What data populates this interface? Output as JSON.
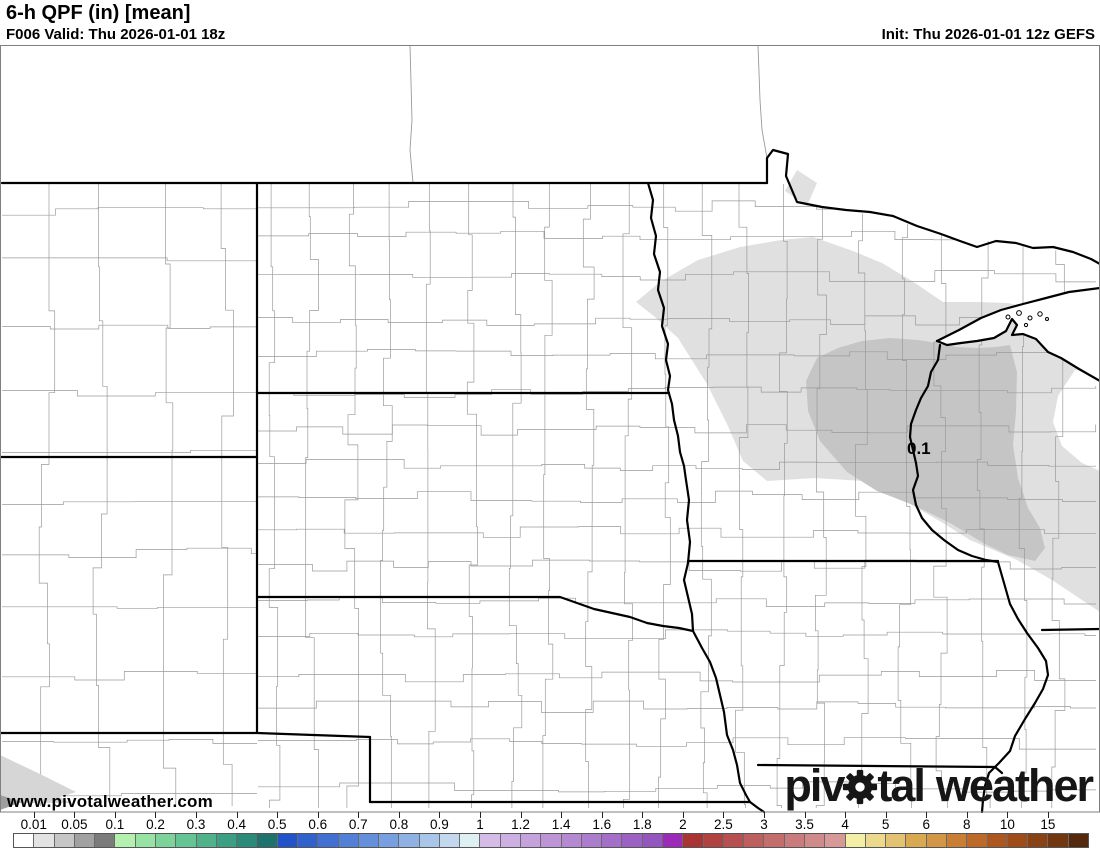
{
  "header": {
    "title": "6-h QPF (in) [mean]",
    "valid": "F006 Valid: Thu 2026-01-01 18z",
    "init": "Init: Thu 2026-01-01 12z GEFS"
  },
  "map": {
    "contour_label": "0.1",
    "watermark": "www.pivotalweather.com",
    "logo": {
      "pre": "piv",
      "post": "tal",
      "second": "weather"
    },
    "shading_colors": {
      "light": "#e0e0e0",
      "dark": "#c5c5c5"
    }
  },
  "colorbar": {
    "labels": [
      "0.01",
      "0.05",
      "0.1",
      "0.2",
      "0.3",
      "0.4",
      "0.5",
      "0.6",
      "0.7",
      "0.8",
      "0.9",
      "1",
      "1.2",
      "1.4",
      "1.6",
      "1.8",
      "2",
      "2.5",
      "3",
      "3.5",
      "4",
      "5",
      "6",
      "8",
      "10",
      "15"
    ],
    "cells": [
      "#ffffff",
      "#e3e3e3",
      "#c6c6c6",
      "#a1a1a1",
      "#7b7b7b",
      "#b4f0b0",
      "#97e3a3",
      "#7cd49b",
      "#64c493",
      "#4fb28b",
      "#3c9f83",
      "#2c8a79",
      "#1f736d",
      "#2353c8",
      "#3161cd",
      "#4170d2",
      "#5280d7",
      "#648fdb",
      "#78a0e0",
      "#8fb2e5",
      "#a8c5ea",
      "#c3d8ee",
      "#def0f3",
      "#d5bce6",
      "#cdafe1",
      "#c5a2dc",
      "#bd95d7",
      "#b589d2",
      "#ac7ccd",
      "#a46fc8",
      "#9c62c3",
      "#9355be",
      "#9b2ab8",
      "#a93434",
      "#b04242",
      "#b75050",
      "#bd5f5f",
      "#c46d6d",
      "#ca7b7b",
      "#d18a8a",
      "#d79898",
      "#f3efa4",
      "#ecd98b",
      "#e3c271",
      "#d9a952",
      "#d39546",
      "#c97e33",
      "#bd6a28",
      "#ac571e",
      "#9e4d18",
      "#884213",
      "#703711",
      "#552a0c"
    ]
  }
}
